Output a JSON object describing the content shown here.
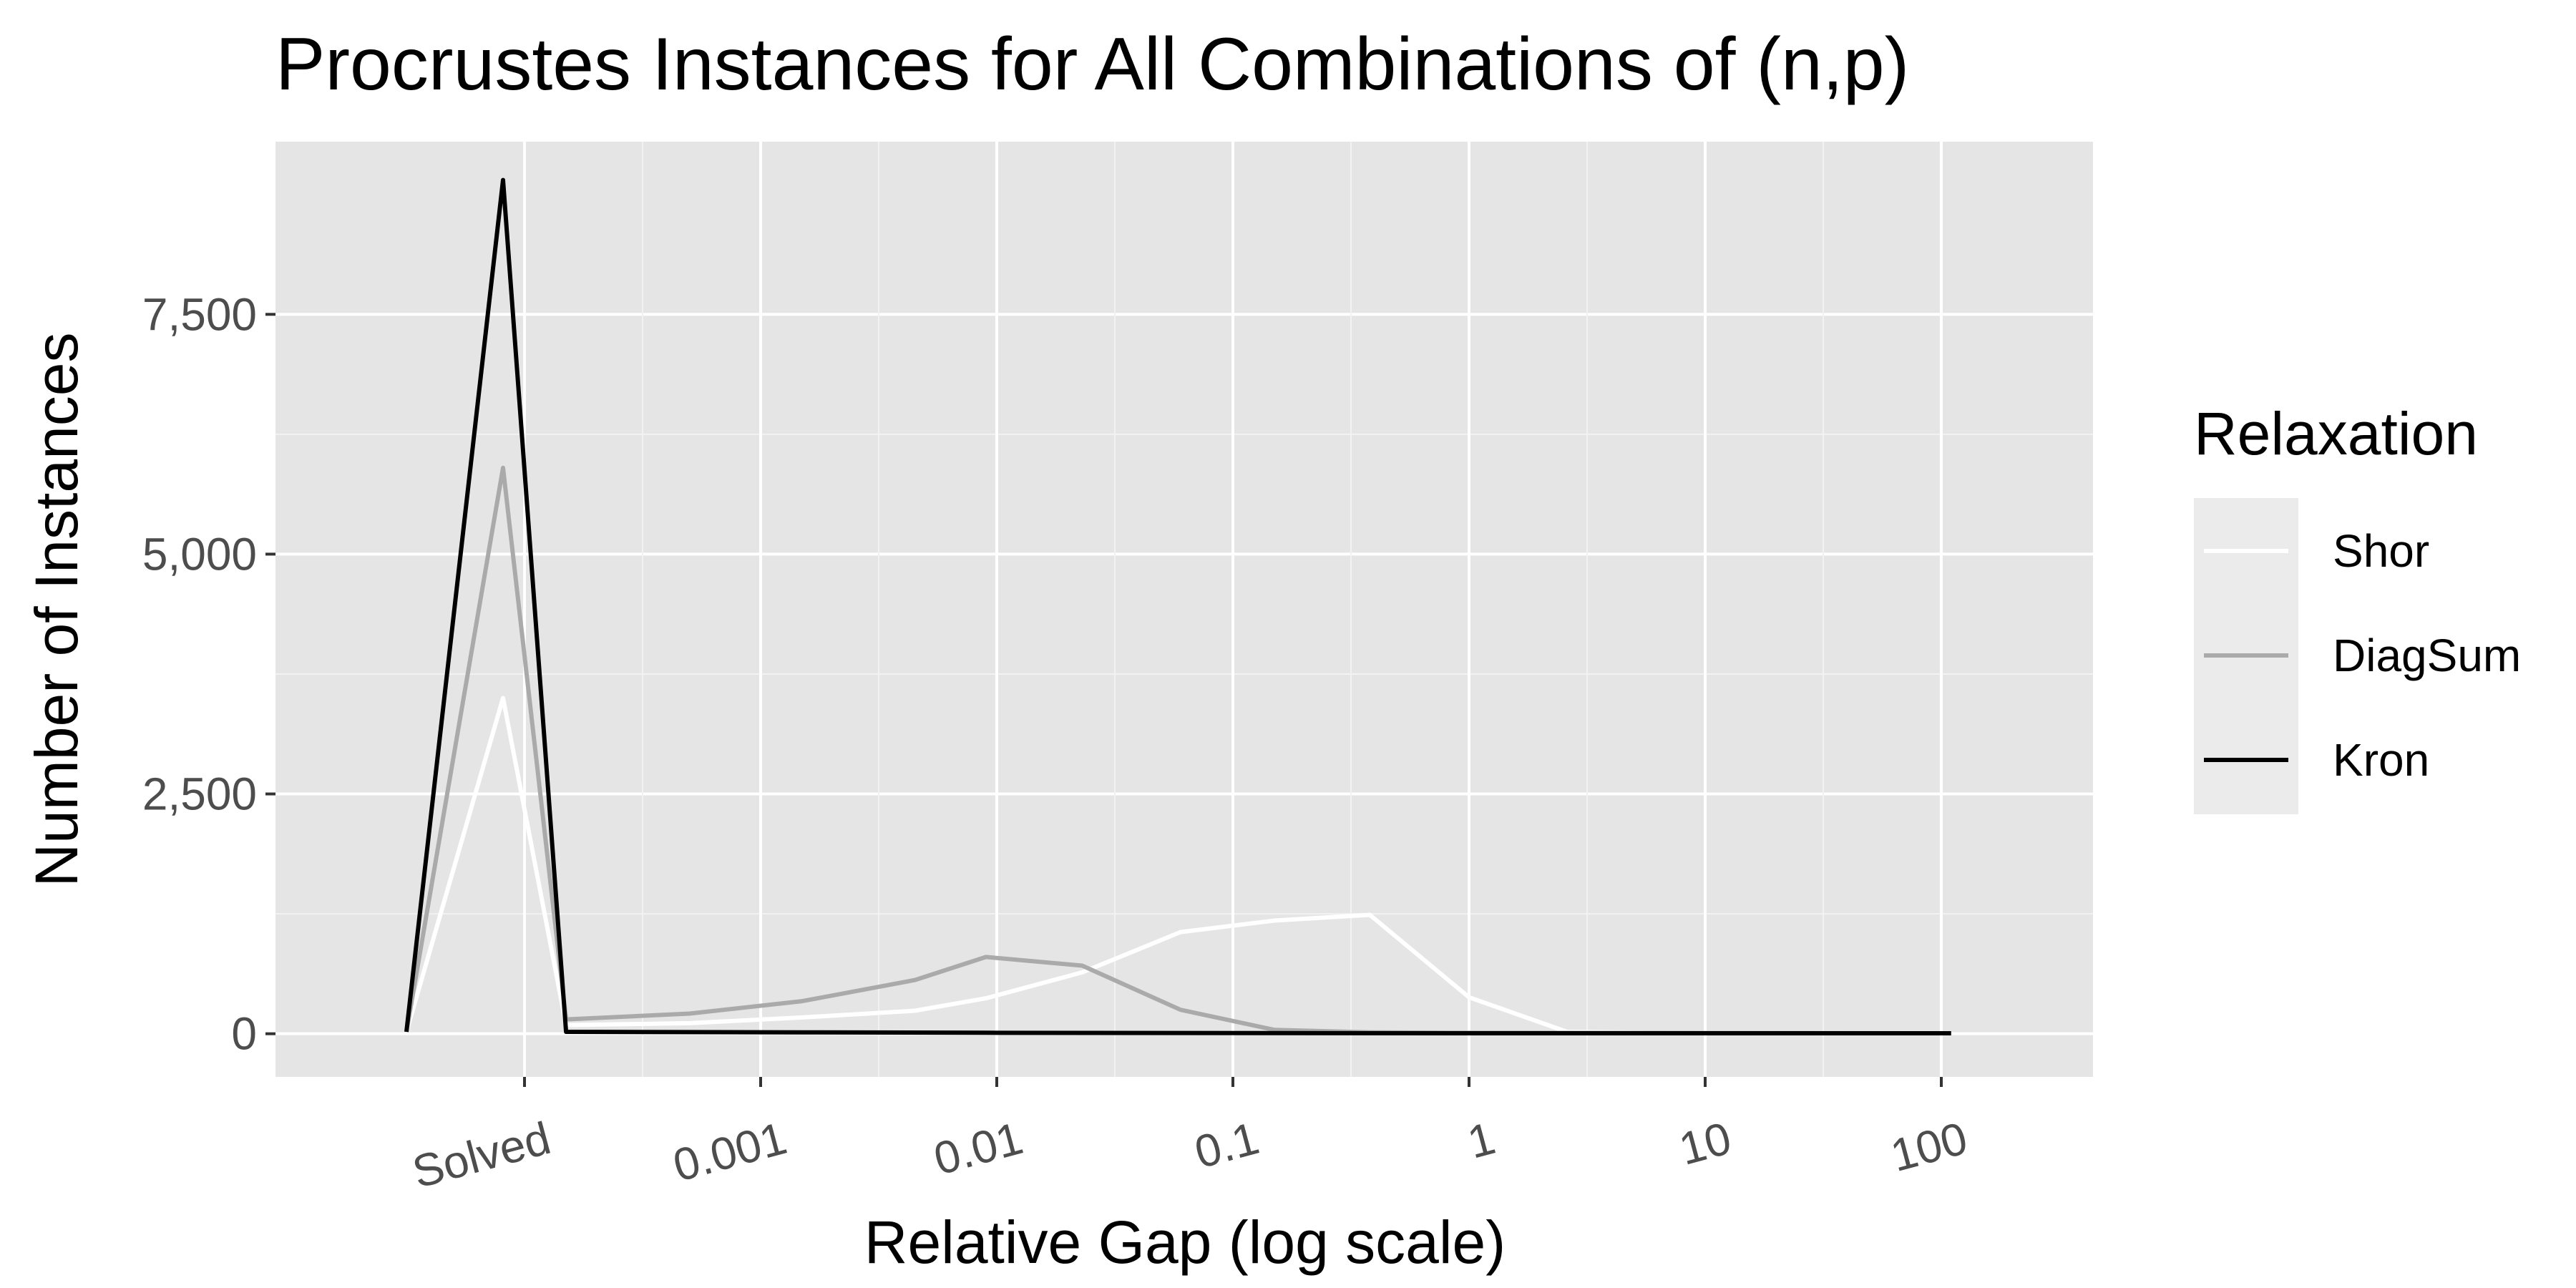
{
  "chart_data": {
    "type": "line",
    "title": "Procrustes Instances for All Combinations of (n,p)",
    "xlabel": "Relative Gap (log scale)",
    "ylabel": "Number of Instances",
    "x_scale": "log",
    "x_tick_labels": [
      "Solved",
      "0.001",
      "0.01",
      "0.1",
      "1",
      "10",
      "100"
    ],
    "y_ticks": [
      0,
      2500,
      5000,
      7500
    ],
    "y_tick_labels": [
      "0",
      "2,500",
      "5,000",
      "7,500"
    ],
    "ylim": [
      -450,
      9300
    ],
    "grid": true,
    "panel_background": "#e5e5e5",
    "legend": {
      "title": "Relaxation",
      "position": "right"
    },
    "series": [
      {
        "name": "Shor",
        "color": "#ffffff",
        "points": [
          {
            "x": "below Solved",
            "y": 20
          },
          {
            "x": "Solved",
            "y": 3500
          },
          {
            "x": "0.00015",
            "y": 90
          },
          {
            "x": "0.0005",
            "y": 110
          },
          {
            "x": "0.0015",
            "y": 170
          },
          {
            "x": "0.0045",
            "y": 240
          },
          {
            "x": "0.009",
            "y": 370
          },
          {
            "x": "0.023",
            "y": 640
          },
          {
            "x": "0.06",
            "y": 1060
          },
          {
            "x": "0.15",
            "y": 1180
          },
          {
            "x": "0.38",
            "y": 1240
          },
          {
            "x": "1",
            "y": 380
          },
          {
            "x": "2.6",
            "y": 20
          },
          {
            "x": "7",
            "y": 8
          },
          {
            "x": "110",
            "y": 5
          }
        ]
      },
      {
        "name": "DiagSum",
        "color": "#aaaaaa",
        "points": [
          {
            "x": "below Solved",
            "y": 20
          },
          {
            "x": "Solved",
            "y": 5900
          },
          {
            "x": "0.00015",
            "y": 150
          },
          {
            "x": "0.0005",
            "y": 210
          },
          {
            "x": "0.0015",
            "y": 340
          },
          {
            "x": "0.0045",
            "y": 560
          },
          {
            "x": "0.009",
            "y": 800
          },
          {
            "x": "0.023",
            "y": 710
          },
          {
            "x": "0.06",
            "y": 250
          },
          {
            "x": "0.15",
            "y": 40
          },
          {
            "x": "0.38",
            "y": 15
          },
          {
            "x": "1",
            "y": 10
          },
          {
            "x": "110",
            "y": 5
          }
        ]
      },
      {
        "name": "Kron",
        "color": "#000000",
        "points": [
          {
            "x": "below Solved",
            "y": 20
          },
          {
            "x": "Solved",
            "y": 8900
          },
          {
            "x": "0.00015",
            "y": 20
          },
          {
            "x": "0.0015",
            "y": 15
          },
          {
            "x": "0.009",
            "y": 10
          },
          {
            "x": "1",
            "y": 5
          },
          {
            "x": "110",
            "y": 5
          }
        ]
      }
    ]
  }
}
